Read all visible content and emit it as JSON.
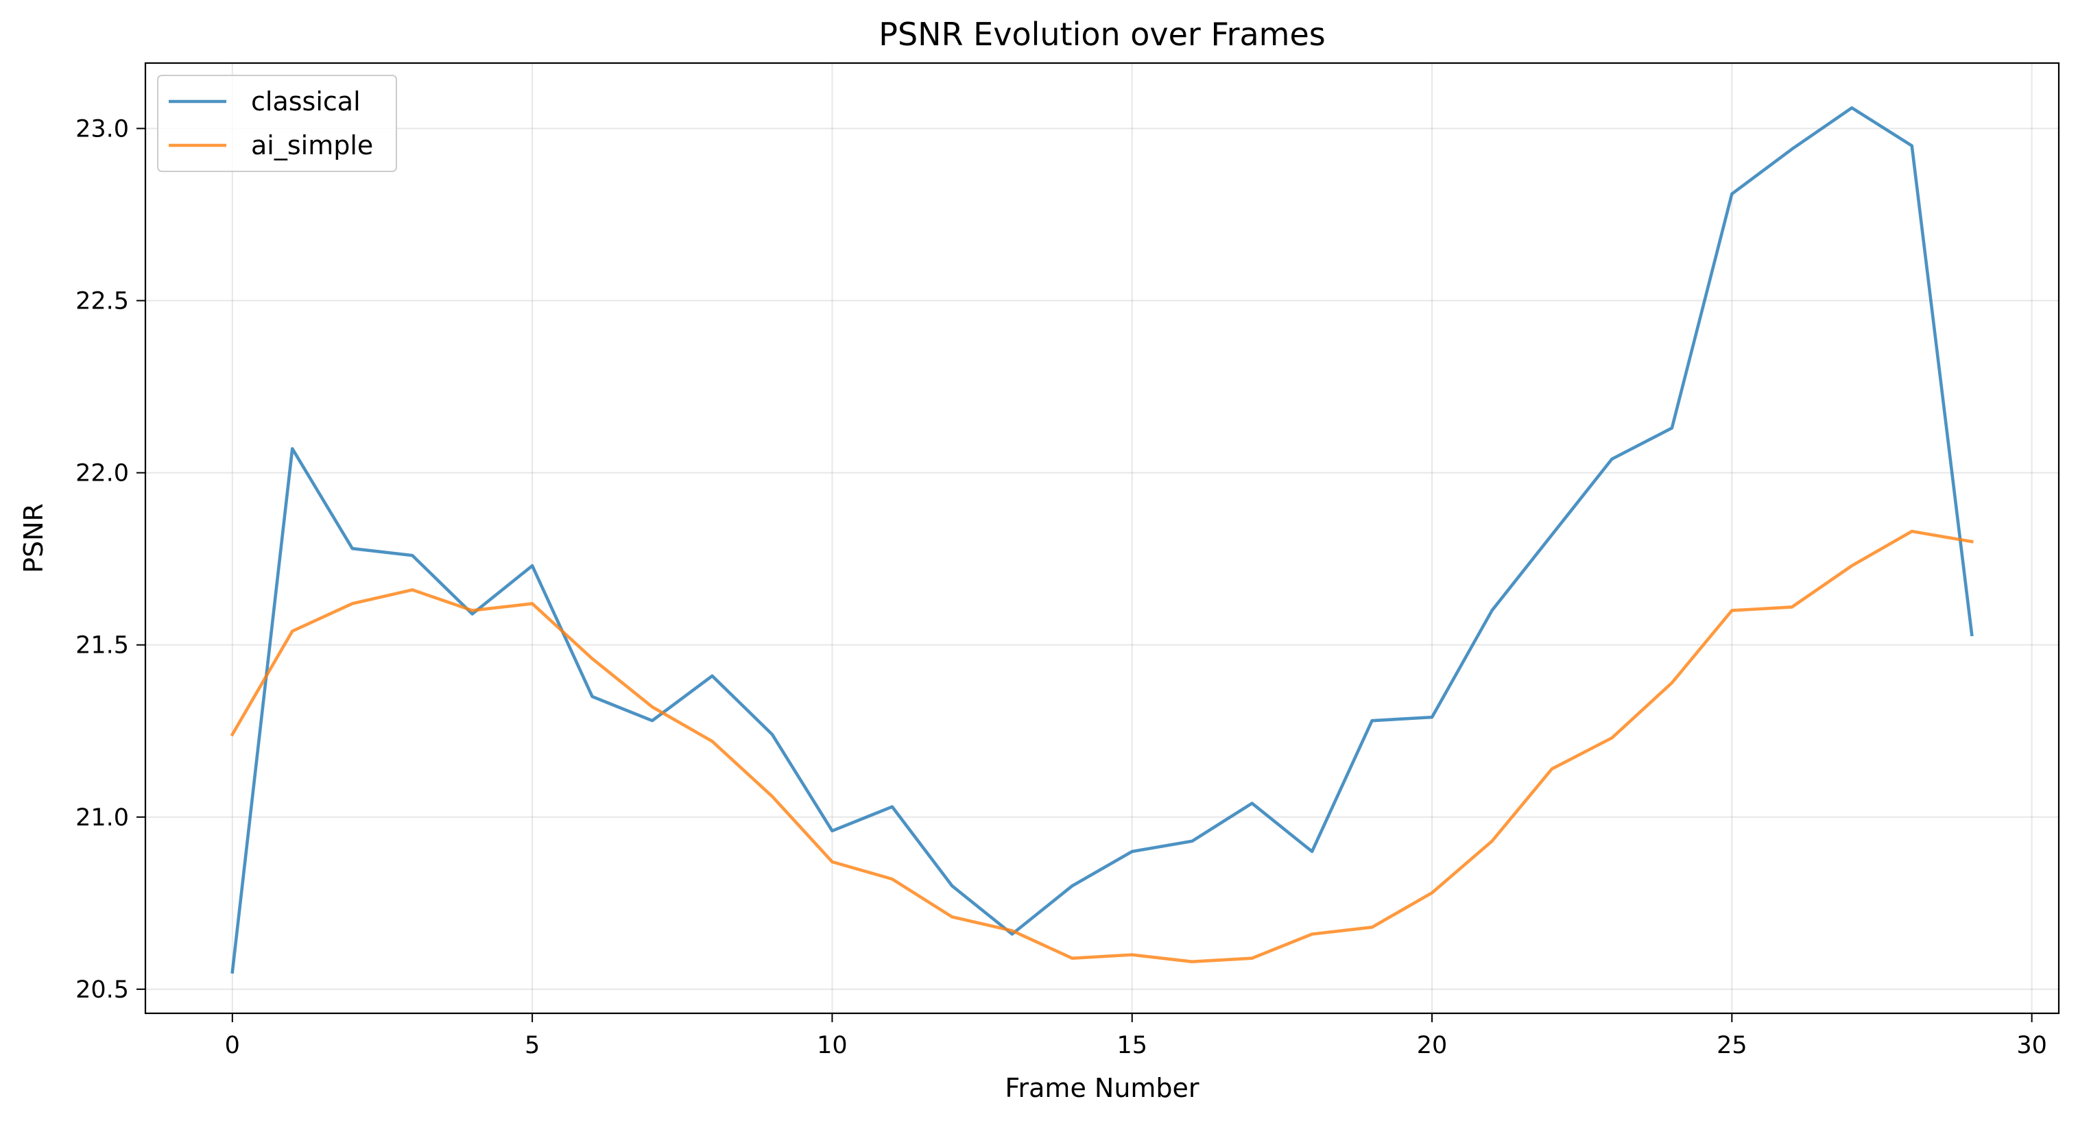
{
  "chart_data": {
    "type": "line",
    "title": "PSNR Evolution over Frames",
    "xlabel": "Frame Number",
    "ylabel": "PSNR",
    "xlim": [
      -1.45,
      30.45
    ],
    "ylim": [
      20.43,
      23.19
    ],
    "xticks": [
      0,
      5,
      10,
      15,
      20,
      25,
      30
    ],
    "yticks": [
      20.5,
      21.0,
      21.5,
      22.0,
      22.5,
      23.0
    ],
    "xtick_labels": [
      "0",
      "5",
      "10",
      "15",
      "20",
      "25",
      "30"
    ],
    "ytick_labels": [
      "20.5",
      "21.0",
      "21.5",
      "22.0",
      "22.5",
      "23.0"
    ],
    "grid": true,
    "legend_position": "upper left",
    "x": [
      0,
      1,
      2,
      3,
      4,
      5,
      6,
      7,
      8,
      9,
      10,
      11,
      12,
      13,
      14,
      15,
      16,
      17,
      18,
      19,
      20,
      21,
      22,
      23,
      24,
      25,
      26,
      27,
      28,
      29
    ],
    "series": [
      {
        "name": "classical",
        "color": "#1f77b4",
        "values": [
          20.55,
          22.07,
          21.78,
          21.76,
          21.59,
          21.73,
          21.35,
          21.28,
          21.41,
          21.24,
          20.96,
          21.03,
          20.8,
          20.66,
          20.8,
          20.9,
          20.93,
          21.04,
          20.9,
          21.28,
          21.29,
          21.6,
          21.82,
          22.04,
          22.13,
          22.81,
          22.94,
          23.06,
          22.95,
          21.53
        ]
      },
      {
        "name": "ai_simple",
        "color": "#ff7f0e",
        "values": [
          21.24,
          21.54,
          21.62,
          21.66,
          21.6,
          21.62,
          21.46,
          21.32,
          21.22,
          21.06,
          20.87,
          20.82,
          20.71,
          20.67,
          20.59,
          20.6,
          20.58,
          20.59,
          20.66,
          20.68,
          20.78,
          20.93,
          21.14,
          21.23,
          21.39,
          21.6,
          21.61,
          21.73,
          21.83,
          21.8
        ]
      }
    ]
  }
}
